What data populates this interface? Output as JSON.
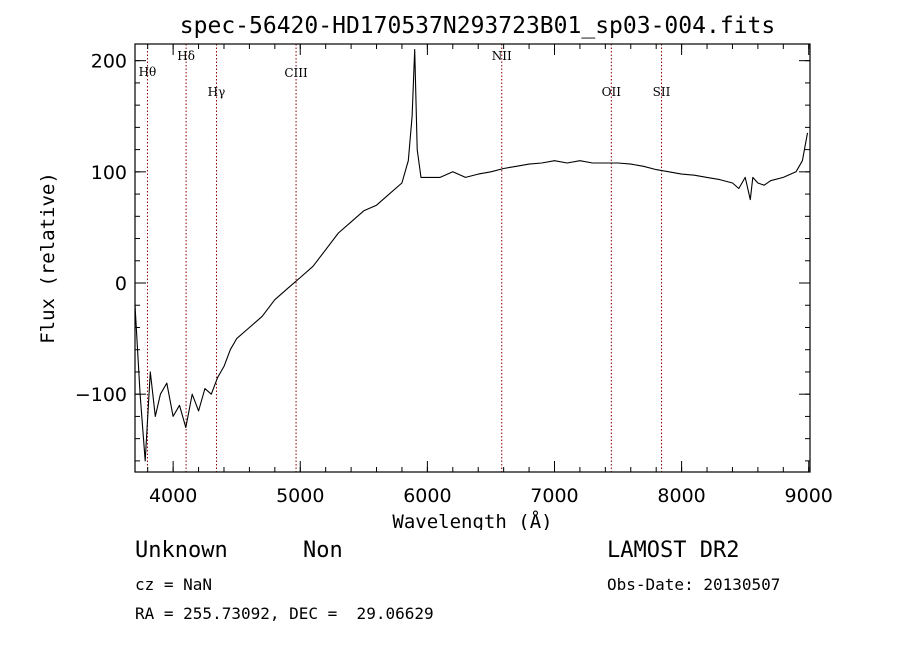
{
  "chart_data": {
    "type": "line",
    "title": "spec-56420-HD170537N293723B01_sp03-004.fits",
    "xlabel": "Wavelength (Å)",
    "ylabel": "Flux (relative)",
    "xlim": [
      3700,
      9010
    ],
    "ylim": [
      -170,
      215
    ],
    "xticks": [
      4000,
      5000,
      6000,
      7000,
      8000,
      9000
    ],
    "yticks": [
      -100,
      0,
      100,
      200
    ],
    "grid": false,
    "line_color": "#000000",
    "marker_color": "#8b0000",
    "series": [
      {
        "x": [
          3700,
          3740,
          3780,
          3820,
          3860,
          3900,
          3950,
          4000,
          4050,
          4100,
          4150,
          4200,
          4250,
          4300,
          4350,
          4400,
          4450,
          4500,
          4600,
          4700,
          4800,
          4900,
          5000,
          5100,
          5200,
          5300,
          5400,
          5500,
          5600,
          5700,
          5800,
          5850,
          5880,
          5900,
          5920,
          5950,
          6000,
          6100,
          6200,
          6300,
          6400,
          6500,
          6600,
          6700,
          6800,
          6900,
          7000,
          7100,
          7200,
          7300,
          7400,
          7500,
          7600,
          7700,
          7800,
          7900,
          8000,
          8100,
          8200,
          8300,
          8400,
          8450,
          8500,
          8540,
          8560,
          8600,
          8650,
          8700,
          8800,
          8900,
          8950,
          8990
        ],
        "y": [
          -20,
          -100,
          -160,
          -80,
          -120,
          -100,
          -90,
          -120,
          -110,
          -130,
          -100,
          -115,
          -95,
          -100,
          -85,
          -75,
          -60,
          -50,
          -40,
          -30,
          -15,
          -5,
          5,
          15,
          30,
          45,
          55,
          65,
          70,
          80,
          90,
          110,
          150,
          210,
          120,
          95,
          95,
          95,
          100,
          95,
          98,
          100,
          103,
          105,
          107,
          108,
          110,
          108,
          110,
          108,
          108,
          108,
          107,
          105,
          102,
          100,
          98,
          97,
          95,
          93,
          90,
          85,
          95,
          75,
          95,
          90,
          88,
          92,
          95,
          100,
          110,
          135
        ]
      }
    ],
    "lines": [
      {
        "label": "Hθ",
        "x": 3798
      },
      {
        "label": "Hδ",
        "x": 4102
      },
      {
        "label": "Hγ",
        "x": 4341
      },
      {
        "label": "CIII",
        "x": 4967
      },
      {
        "label": "NII",
        "x": 6585
      },
      {
        "label": "OII",
        "x": 7447
      },
      {
        "label": "SII",
        "x": 7842
      }
    ]
  },
  "info": {
    "class": "Unknown",
    "subclass": "Non",
    "survey": "LAMOST DR2",
    "cz": "cz = NaN",
    "obs_date": "Obs-Date: 20130507",
    "radec": "RA = 255.73092, DEC =  29.06629"
  }
}
